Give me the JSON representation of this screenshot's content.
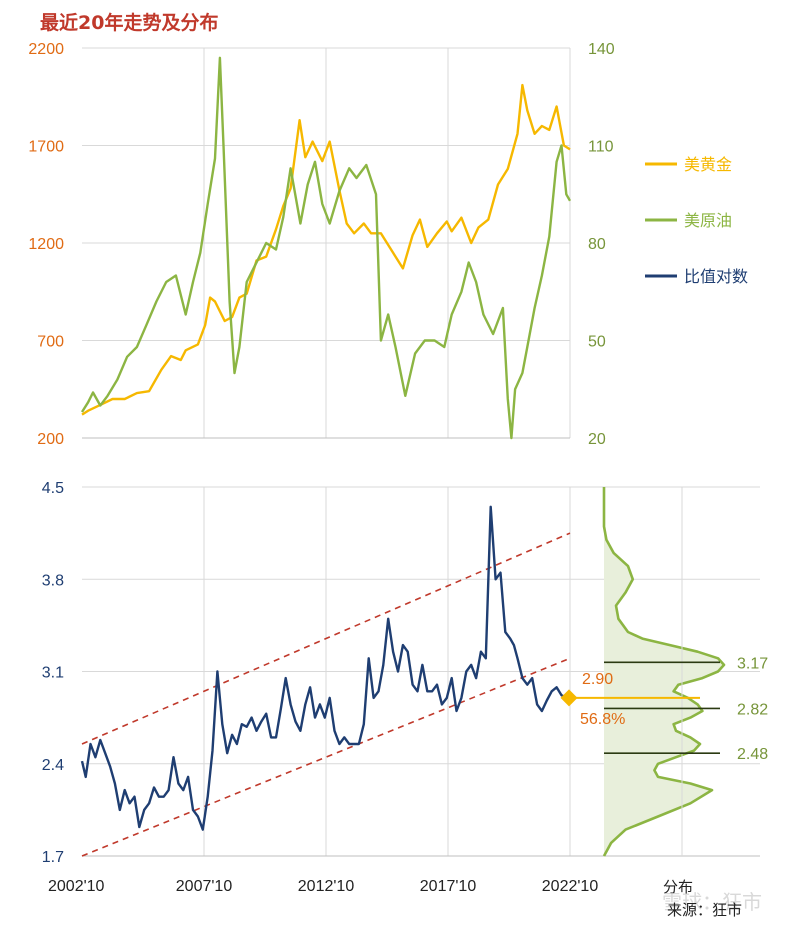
{
  "title": "最近20年走势及分布",
  "source": "来源：狂市",
  "watermark": "雪球：狂市",
  "colors": {
    "gold": "#f6b800",
    "oil": "#8cb543",
    "ratio": "#1f3e72",
    "trend": "#c0392b",
    "left_axis": "#e06b14",
    "right_axis": "#77953a",
    "marker": "#f6b800",
    "ratio_label": "#e06b14",
    "dist_fill": "#e8efdb",
    "dist_line": "#8cb543",
    "grid": "#d9d9d9"
  },
  "chart_data": [
    {
      "type": "line",
      "legend_position": "right",
      "grid": true,
      "x_start": "2002'10",
      "x_end": "2022'10",
      "xlim": [
        2002.75,
        2022.75
      ],
      "y_left": {
        "ticks": [
          "200",
          "700",
          "1200",
          "1700",
          "2200"
        ],
        "ylim": [
          200,
          2200
        ]
      },
      "y_right": {
        "ticks": [
          "20",
          "50",
          "80",
          "110",
          "140"
        ],
        "ylim": [
          20,
          140
        ]
      },
      "series": [
        {
          "name": "美黄金",
          "axis": "left",
          "x": [
            2002.75,
            2003.0,
            2003.5,
            2004.0,
            2004.5,
            2005.0,
            2005.5,
            2006.0,
            2006.4,
            2006.8,
            2007.0,
            2007.5,
            2007.8,
            2008.0,
            2008.2,
            2008.6,
            2008.9,
            2009.2,
            2009.5,
            2009.9,
            2010.3,
            2010.7,
            2011.0,
            2011.3,
            2011.67,
            2011.9,
            2012.2,
            2012.6,
            2012.9,
            2013.3,
            2013.6,
            2013.9,
            2014.3,
            2014.6,
            2015.0,
            2015.5,
            2015.9,
            2016.3,
            2016.6,
            2016.9,
            2017.3,
            2017.7,
            2017.9,
            2018.3,
            2018.7,
            2019.0,
            2019.4,
            2019.8,
            2020.2,
            2020.6,
            2020.8,
            2021.0,
            2021.3,
            2021.6,
            2021.9,
            2022.2,
            2022.5,
            2022.75
          ],
          "values": [
            320,
            340,
            370,
            400,
            400,
            430,
            440,
            550,
            620,
            600,
            650,
            680,
            780,
            920,
            900,
            800,
            820,
            920,
            940,
            1110,
            1130,
            1270,
            1390,
            1480,
            1830,
            1640,
            1720,
            1620,
            1720,
            1470,
            1300,
            1250,
            1300,
            1250,
            1250,
            1150,
            1070,
            1240,
            1320,
            1180,
            1250,
            1310,
            1260,
            1330,
            1200,
            1280,
            1320,
            1500,
            1580,
            1760,
            2010,
            1880,
            1760,
            1800,
            1780,
            1900,
            1700,
            1680
          ]
        },
        {
          "name": "美原油",
          "axis": "right",
          "x": [
            2002.75,
            2003.0,
            2003.2,
            2003.5,
            2003.8,
            2004.2,
            2004.6,
            2005.0,
            2005.4,
            2005.8,
            2006.2,
            2006.6,
            2007.0,
            2007.3,
            2007.6,
            2007.9,
            2008.2,
            2008.4,
            2008.55,
            2008.8,
            2009.0,
            2009.2,
            2009.5,
            2009.9,
            2010.3,
            2010.7,
            2011.0,
            2011.3,
            2011.7,
            2012.0,
            2012.3,
            2012.6,
            2012.9,
            2013.3,
            2013.7,
            2014.0,
            2014.4,
            2014.8,
            2015.0,
            2015.3,
            2015.6,
            2016.0,
            2016.4,
            2016.8,
            2017.2,
            2017.6,
            2017.9,
            2018.3,
            2018.6,
            2018.9,
            2019.2,
            2019.6,
            2020.0,
            2020.2,
            2020.35,
            2020.5,
            2020.8,
            2021.0,
            2021.3,
            2021.6,
            2021.9,
            2022.2,
            2022.4,
            2022.6,
            2022.75
          ],
          "values": [
            28,
            31,
            34,
            30,
            33,
            38,
            45,
            48,
            55,
            62,
            68,
            70,
            58,
            68,
            77,
            92,
            106,
            137,
            110,
            62,
            40,
            48,
            68,
            74,
            80,
            78,
            88,
            103,
            86,
            98,
            105,
            92,
            86,
            96,
            103,
            100,
            104,
            95,
            50,
            58,
            48,
            33,
            46,
            50,
            50,
            48,
            58,
            65,
            74,
            68,
            58,
            52,
            60,
            32,
            20,
            35,
            40,
            48,
            60,
            70,
            82,
            105,
            110,
            95,
            93
          ]
        }
      ]
    },
    {
      "type": "line",
      "grid": true,
      "xticks": [
        "2002'10",
        "2007'10",
        "2012'10",
        "2017'10",
        "2022'10"
      ],
      "xlim": [
        2002.75,
        2022.75
      ],
      "yticks": [
        "1.7",
        "2.4",
        "3.1",
        "3.8",
        "4.5"
      ],
      "ylim": [
        1.7,
        4.5
      ],
      "series": [
        {
          "name": "比值对数",
          "x": [
            2002.75,
            2002.9,
            2003.1,
            2003.3,
            2003.5,
            2003.7,
            2003.9,
            2004.1,
            2004.3,
            2004.5,
            2004.7,
            2004.9,
            2005.1,
            2005.3,
            2005.5,
            2005.7,
            2005.9,
            2006.1,
            2006.3,
            2006.5,
            2006.7,
            2006.9,
            2007.1,
            2007.3,
            2007.5,
            2007.7,
            2007.9,
            2008.1,
            2008.3,
            2008.5,
            2008.7,
            2008.9,
            2009.1,
            2009.3,
            2009.5,
            2009.7,
            2009.9,
            2010.1,
            2010.3,
            2010.5,
            2010.7,
            2010.9,
            2011.1,
            2011.3,
            2011.5,
            2011.7,
            2011.9,
            2012.1,
            2012.3,
            2012.5,
            2012.7,
            2012.9,
            2013.1,
            2013.3,
            2013.5,
            2013.7,
            2013.9,
            2014.1,
            2014.3,
            2014.5,
            2014.7,
            2014.9,
            2015.1,
            2015.3,
            2015.5,
            2015.7,
            2015.9,
            2016.1,
            2016.3,
            2016.5,
            2016.7,
            2016.9,
            2017.1,
            2017.3,
            2017.5,
            2017.7,
            2017.9,
            2018.1,
            2018.3,
            2018.5,
            2018.7,
            2018.9,
            2019.1,
            2019.3,
            2019.5,
            2019.7,
            2019.9,
            2020.1,
            2020.3,
            2020.45,
            2020.6,
            2020.8,
            2021.0,
            2021.2,
            2021.4,
            2021.6,
            2021.8,
            2022.0,
            2022.2,
            2022.4,
            2022.6,
            2022.75
          ],
          "values": [
            2.42,
            2.3,
            2.55,
            2.45,
            2.58,
            2.48,
            2.38,
            2.25,
            2.05,
            2.2,
            2.1,
            2.15,
            1.92,
            2.05,
            2.1,
            2.22,
            2.15,
            2.15,
            2.2,
            2.45,
            2.25,
            2.2,
            2.3,
            2.05,
            2.0,
            1.9,
            2.15,
            2.5,
            3.1,
            2.7,
            2.48,
            2.62,
            2.55,
            2.7,
            2.68,
            2.75,
            2.65,
            2.72,
            2.78,
            2.6,
            2.6,
            2.82,
            3.05,
            2.85,
            2.72,
            2.65,
            2.85,
            2.98,
            2.75,
            2.85,
            2.75,
            2.9,
            2.65,
            2.55,
            2.6,
            2.55,
            2.55,
            2.55,
            2.7,
            3.2,
            2.9,
            2.95,
            3.15,
            3.5,
            3.25,
            3.1,
            3.3,
            3.25,
            3.0,
            2.95,
            3.15,
            2.95,
            2.95,
            3.0,
            2.85,
            2.9,
            3.05,
            2.8,
            2.9,
            3.1,
            3.15,
            3.05,
            3.25,
            3.2,
            4.35,
            3.8,
            3.85,
            3.4,
            3.35,
            3.3,
            3.2,
            3.05,
            3.0,
            3.05,
            2.85,
            2.8,
            2.88,
            2.95,
            2.98,
            2.92,
            2.9,
            2.9
          ]
        }
      ],
      "trend_channel": {
        "upper": {
          "x": [
            2002.75,
            2022.75
          ],
          "values": [
            2.55,
            4.15
          ]
        },
        "lower": {
          "x": [
            2002.75,
            2022.75
          ],
          "values": [
            1.7,
            3.2
          ]
        }
      },
      "current_value": {
        "label_value": "2.90",
        "label_percentile": "56.8%",
        "value": 2.9
      }
    },
    {
      "type": "area",
      "xlabel": "分布",
      "ylim": [
        1.7,
        4.5
      ],
      "reference_lines": [
        {
          "value": 3.17,
          "label": "3.17"
        },
        {
          "value": 2.82,
          "label": "2.82"
        },
        {
          "value": 2.48,
          "label": "2.48"
        }
      ],
      "density_y": [
        1.7,
        1.8,
        1.9,
        2.0,
        2.1,
        2.2,
        2.25,
        2.3,
        2.35,
        2.4,
        2.45,
        2.5,
        2.55,
        2.6,
        2.65,
        2.7,
        2.75,
        2.8,
        2.85,
        2.9,
        2.95,
        3.0,
        3.05,
        3.1,
        3.15,
        3.2,
        3.25,
        3.3,
        3.35,
        3.4,
        3.5,
        3.6,
        3.7,
        3.8,
        3.9,
        4.0,
        4.1,
        4.2,
        4.3,
        4.4,
        4.5
      ],
      "density_values": [
        0.0,
        0.06,
        0.18,
        0.45,
        0.72,
        0.9,
        0.72,
        0.45,
        0.42,
        0.45,
        0.6,
        0.75,
        0.8,
        0.72,
        0.6,
        0.58,
        0.72,
        0.82,
        0.78,
        0.7,
        0.58,
        0.62,
        0.82,
        0.95,
        1.0,
        0.95,
        0.78,
        0.55,
        0.32,
        0.2,
        0.12,
        0.1,
        0.18,
        0.24,
        0.2,
        0.08,
        0.02,
        0.0,
        0.0,
        0.0,
        0.0
      ]
    }
  ]
}
